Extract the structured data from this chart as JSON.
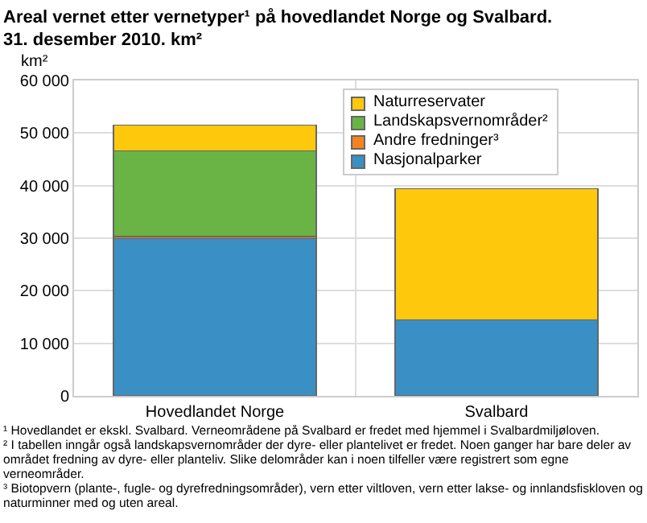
{
  "chart_data": {
    "type": "bar",
    "title": "Areal vernet etter vernetyper¹ på hovedlandet Norge og Svalbard.\n31. desember 2010. km²",
    "ylabel": "km²",
    "categories": [
      "Hovedlandet Norge",
      "Svalbard"
    ],
    "stacked": true,
    "series": [
      {
        "name": "Nasjonalparker",
        "color": "#3a8fc4",
        "values": [
          29900,
          14500
        ]
      },
      {
        "name": "Andre fredninger³",
        "color": "#f58220",
        "values": [
          400,
          0
        ]
      },
      {
        "name": "Landskapsvernområder²",
        "color": "#6ab446",
        "values": [
          16300,
          0
        ]
      },
      {
        "name": "Naturreservater",
        "color": "#fec80d",
        "values": [
          4900,
          24900
        ]
      }
    ],
    "ylim": [
      0,
      60000
    ],
    "yticks": [
      {
        "value": 0,
        "label": "0"
      },
      {
        "value": 10000,
        "label": "10 000"
      },
      {
        "value": 20000,
        "label": "20 000"
      },
      {
        "value": 30000,
        "label": "30 000"
      },
      {
        "value": 40000,
        "label": "40 000"
      },
      {
        "value": 50000,
        "label": "50 000"
      },
      {
        "value": 60000,
        "label": "60 000"
      }
    ],
    "grid": true,
    "legend": "top right",
    "annotations": [
      "¹ Hovedlandet er ekskl. Svalbard. Verneområdene på Svalbard er fredet med hjemmel i Svalbardmiljøloven.",
      "²  I tabellen inngår også landskapsvernområder der dyre- eller plantelivet er fredet. Noen ganger har bare deler av området fredning av dyre- eller planteliv. Slike delområder kan i noen tilfeller være registrert som egne verneområder.",
      "³  Biotopvern (plante-, fugle- og dyrefredningsområder), vern etter viltloven, vern etter lakse- og innlandsfiskloven og naturminner med og uten areal."
    ]
  }
}
